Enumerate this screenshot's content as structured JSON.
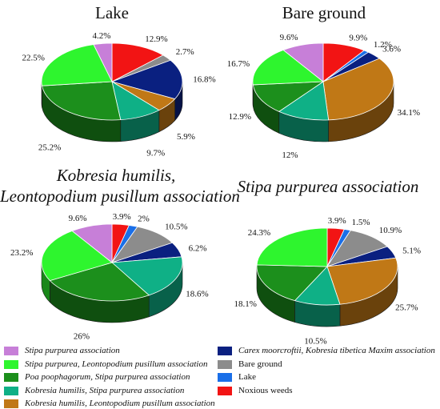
{
  "colors": {
    "Stipa purpurea association": "#c77fd8",
    "Stipa purpurea, Leontopodium pusillum association": "#2ef52e",
    "Poa poophagorum, Stipa purpurea association": "#1c8f1c",
    "Kobresia humilis, Stipa purpurea association": "#0fb086",
    "Kobresia humilis, Leontopodium pusillum association": "#c07816",
    "Carex moorcroftii, Kobresia tibetica Maxim association": "#0a2080",
    "Bare ground": "#8c8c8c",
    "Lake": "#1a6fe8",
    "Noxious weeds": "#f21414"
  },
  "chart_data": [
    {
      "type": "pie",
      "title": "Lake",
      "slices": [
        {
          "name": "Noxious weeds",
          "value": 12.9,
          "label": "12.9%"
        },
        {
          "name": "Bare ground",
          "value": 2.7,
          "label": "2.7%"
        },
        {
          "name": "Carex moorcroftii, Kobresia tibetica Maxim association",
          "value": 16.8,
          "label": "16.8%"
        },
        {
          "name": "Kobresia humilis, Leontopodium pusillum association",
          "value": 5.9,
          "label": "5.9%"
        },
        {
          "name": "Kobresia humilis, Stipa purpurea association",
          "value": 9.7,
          "label": "9.7%"
        },
        {
          "name": "Poa poophagorum, Stipa purpurea association",
          "value": 25.2,
          "label": "25.2%"
        },
        {
          "name": "Stipa purpurea, Leontopodium pusillum association",
          "value": 22.5,
          "label": "22.5%"
        },
        {
          "name": "Stipa purpurea association",
          "value": 4.2,
          "label": "4.2%"
        }
      ]
    },
    {
      "type": "pie",
      "title": "Bare ground",
      "slices": [
        {
          "name": "Noxious weeds",
          "value": 9.9,
          "label": "9.9%"
        },
        {
          "name": "Lake",
          "value": 1.2,
          "label": "1.2%"
        },
        {
          "name": "Carex moorcroftii, Kobresia tibetica Maxim association",
          "value": 3.6,
          "label": "3.6%"
        },
        {
          "name": "Kobresia humilis, Leontopodium pusillum association",
          "value": 34.1,
          "label": "34.1%"
        },
        {
          "name": "Kobresia humilis, Stipa purpurea association",
          "value": 12,
          "label": "12%"
        },
        {
          "name": "Poa poophagorum, Stipa purpurea association",
          "value": 12.9,
          "label": "12.9%"
        },
        {
          "name": "Stipa purpurea, Leontopodium pusillum association",
          "value": 16.7,
          "label": "16.7%"
        },
        {
          "name": "Stipa purpurea association",
          "value": 9.6,
          "label": "9.6%"
        }
      ]
    },
    {
      "type": "pie",
      "title": "Kobresia humilis, Leontopodium pusillum association",
      "title_lines": [
        "Kobresia humilis,",
        "Leontopodium pusillum association"
      ],
      "slices": [
        {
          "name": "Noxious weeds",
          "value": 3.9,
          "label": "3.9%"
        },
        {
          "name": "Lake",
          "value": 2,
          "label": "2%"
        },
        {
          "name": "Bare ground",
          "value": 10.5,
          "label": "10.5%"
        },
        {
          "name": "Carex moorcroftii, Kobresia tibetica Maxim association",
          "value": 6.2,
          "label": "6.2%"
        },
        {
          "name": "Kobresia humilis, Stipa purpurea association",
          "value": 18.6,
          "label": "18.6%"
        },
        {
          "name": "Poa poophagorum, Stipa purpurea association",
          "value": 26,
          "label": "26%"
        },
        {
          "name": "Stipa purpurea, Leontopodium pusillum association",
          "value": 23.2,
          "label": "23.2%"
        },
        {
          "name": "Stipa purpurea association",
          "value": 9.6,
          "label": "9.6%"
        }
      ]
    },
    {
      "type": "pie",
      "title": "Stipa purpurea association",
      "slices": [
        {
          "name": "Noxious weeds",
          "value": 3.9,
          "label": "3.9%"
        },
        {
          "name": "Lake",
          "value": 1.5,
          "label": "1.5%"
        },
        {
          "name": "Bare ground",
          "value": 10.9,
          "label": "10.9%"
        },
        {
          "name": "Carex moorcroftii, Kobresia tibetica Maxim association",
          "value": 5.1,
          "label": "5.1%"
        },
        {
          "name": "Kobresia humilis, Leontopodium pusillum association",
          "value": 25.7,
          "label": "25.7%"
        },
        {
          "name": "Kobresia humilis, Stipa purpurea association",
          "value": 10.5,
          "label": "10.5%"
        },
        {
          "name": "Poa poophagorum, Stipa purpurea association",
          "value": 18.1,
          "label": "18.1%"
        },
        {
          "name": "Stipa purpurea, Leontopodium pusillum association",
          "value": 24.3,
          "label": "24.3%"
        }
      ]
    }
  ],
  "legend": {
    "items": [
      {
        "label": "Stipa purpurea association",
        "italic": true
      },
      {
        "label": "Stipa purpurea, Leontopodium pusillum association",
        "italic": true
      },
      {
        "label": "Poa poophagorum, Stipa purpurea association",
        "italic": true
      },
      {
        "label": "Kobresia humilis, Stipa purpurea association",
        "italic": true
      },
      {
        "label": "Kobresia humilis, Leontopodium pusillum association",
        "italic": true
      },
      {
        "label": "Carex moorcroftii, Kobresia tibetica Maxim association",
        "italic": true
      },
      {
        "label": "Bare ground",
        "italic": false
      },
      {
        "label": "Lake",
        "italic": false
      },
      {
        "label": "Noxious weeds",
        "italic": false
      }
    ]
  }
}
